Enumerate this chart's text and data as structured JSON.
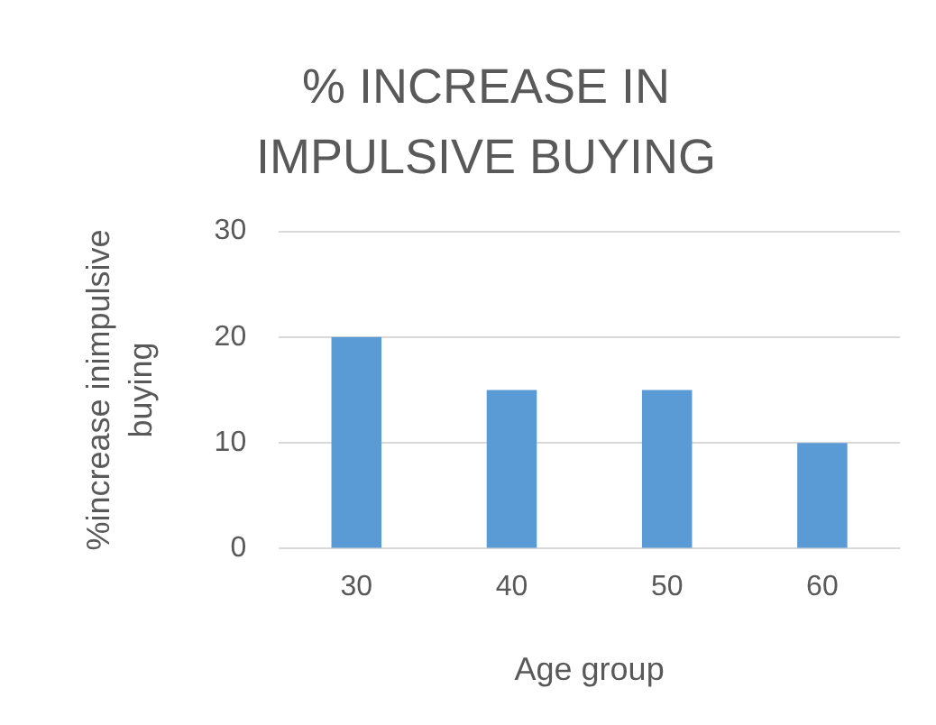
{
  "chart_data": {
    "type": "bar",
    "title": "% INCREASE IN IMPULSIVE BUYING",
    "xlabel": "Age group",
    "ylabel": "%increase inimpulsive buying",
    "categories": [
      "30",
      "40",
      "50",
      "60"
    ],
    "values": [
      20,
      15,
      15,
      10
    ],
    "color": "#5b9bd5",
    "ylim": [
      0,
      30
    ],
    "yticks": [
      0,
      10,
      20,
      30
    ],
    "grid": "y",
    "legend": false
  }
}
